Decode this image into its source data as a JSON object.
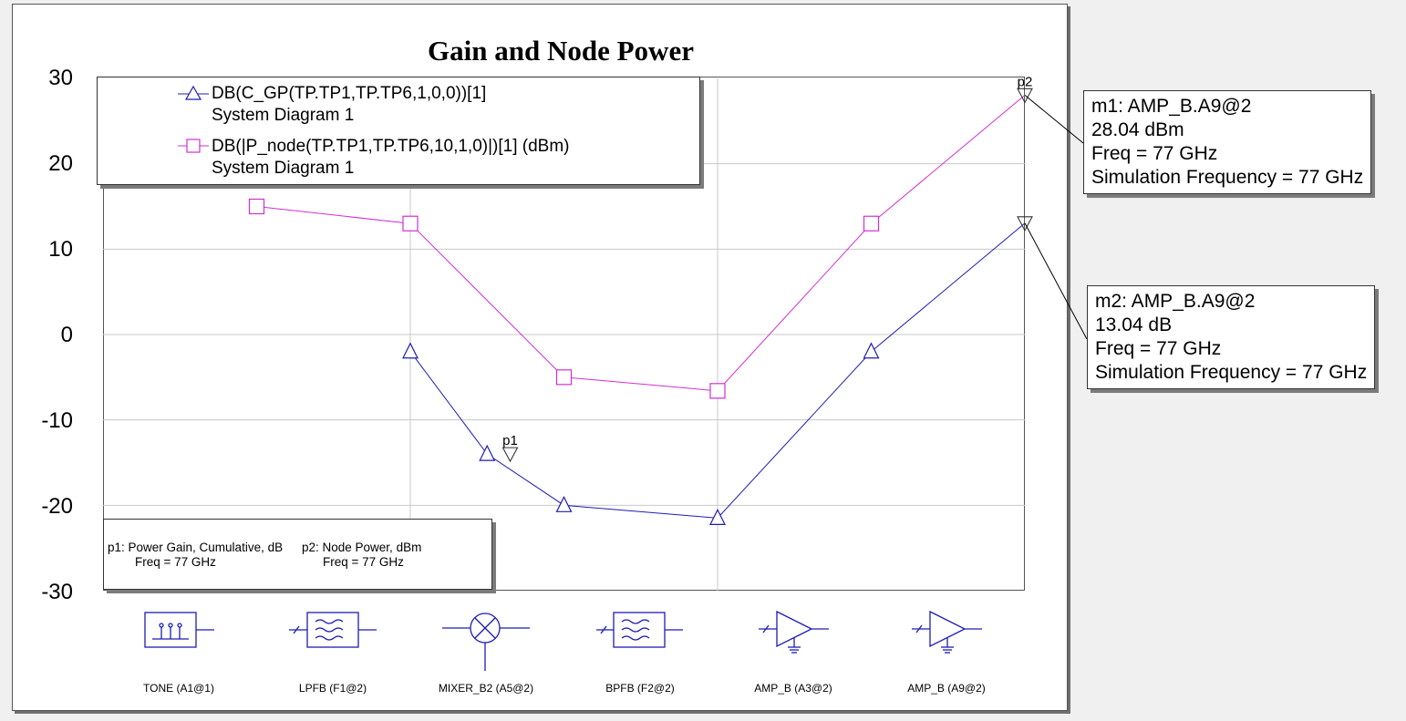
{
  "chart_data": {
    "type": "line",
    "title": "Gain and Node Power",
    "ylim": [
      -30,
      30
    ],
    "yticks": [
      "30",
      "20",
      "10",
      "0",
      "-10",
      "-20",
      "-30"
    ],
    "grid": true,
    "legend_placement": "top-left",
    "categories": [
      "TONE (A1@1)",
      "LPFB (F1@2)",
      "MIXER_B2 (A5@2)",
      "BPFB (F2@2)",
      "AMP_B (A3@2)",
      "AMP_B (A9@2)"
    ],
    "x": [
      0,
      1,
      1.5,
      2,
      3,
      4,
      5
    ],
    "series": [
      {
        "name": "DB(C_GP(TP.TP1,TP.TP6,1,0,0))[1]",
        "subtitle": "System Diagram 1",
        "color": "#1c1cb4",
        "marker": "triangle",
        "values": [
          null,
          -2,
          -14,
          -20,
          -21.5,
          -2,
          13.04
        ]
      },
      {
        "name": "DB(|P_node(TP.TP1,TP.TP6,10,1,0)|)[1] (dBm)",
        "subtitle": "System Diagram 1",
        "color": "#d22ed2",
        "marker": "square",
        "values": [
          15,
          13,
          null,
          -5,
          -6.6,
          13,
          28.04
        ]
      }
    ],
    "markers": [
      {
        "id": "p1",
        "label": "p1",
        "series": 0,
        "x": 1.65,
        "y": -14,
        "text": "p1: Power Gain, Cumulative, dB",
        "freq": "Freq = 77 GHz"
      },
      {
        "id": "p2",
        "label": "p2",
        "series": 1,
        "x": 5,
        "y": 28.04,
        "text": "p2: Node Power, dBm",
        "freq": "Freq = 77 GHz"
      }
    ],
    "marker_boxes": [
      {
        "id": "m1",
        "lines": [
          "m1: AMP_B.A9@2",
          "28.04 dBm",
          "Freq = 77 GHz",
          "Simulation Frequency = 77 GHz"
        ],
        "target_series": 1,
        "target_x": 5,
        "target_y": 28.04
      },
      {
        "id": "m2",
        "lines": [
          "m2: AMP_B.A9@2",
          "13.04 dB",
          "Freq = 77 GHz",
          "Simulation Frequency = 77 GHz"
        ],
        "target_series": 0,
        "target_x": 5,
        "target_y": 13.04
      }
    ],
    "components": [
      {
        "label": "TONE (A1@1)",
        "icon": "tone-source-icon"
      },
      {
        "label": "LPFB (F1@2)",
        "icon": "lowpass-filter-icon"
      },
      {
        "label": "MIXER_B2 (A5@2)",
        "icon": "mixer-icon"
      },
      {
        "label": "BPFB (F2@2)",
        "icon": "bandpass-filter-icon"
      },
      {
        "label": "AMP_B (A3@2)",
        "icon": "amplifier-icon"
      },
      {
        "label": "AMP_B (A9@2)",
        "icon": "amplifier-icon"
      }
    ]
  }
}
